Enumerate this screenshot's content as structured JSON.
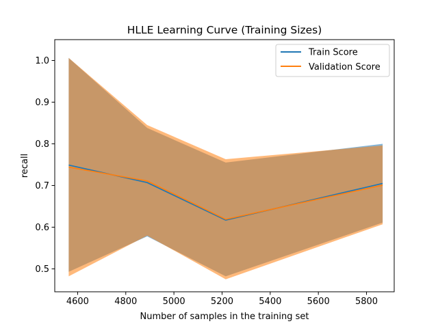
{
  "chart_data": {
    "type": "line",
    "title": "HLLE Learning Curve (Training Sizes)",
    "xlabel": "Number of samples in the training set",
    "ylabel": "recall",
    "xlim": [
      4505,
      5915
    ],
    "ylim": [
      0.445,
      1.05
    ],
    "x_ticks": [
      4600,
      4800,
      5000,
      5200,
      5400,
      5600,
      5800
    ],
    "y_ticks": [
      0.5,
      0.6,
      0.7,
      0.8,
      0.9,
      1.0
    ],
    "y_tick_labels": [
      "0.5",
      "0.6",
      "0.7",
      "0.8",
      "0.9",
      "1.0"
    ],
    "legend_position": "upper right",
    "grid": false,
    "x": [
      4563,
      4889,
      5215,
      5867
    ],
    "series": [
      {
        "name": "Train Score",
        "color": "#1f77b4",
        "values": [
          0.749,
          0.707,
          0.617,
          0.705
        ],
        "band_lower": [
          0.493,
          0.578,
          0.482,
          0.611
        ],
        "band_upper": [
          1.006,
          0.838,
          0.755,
          0.8
        ]
      },
      {
        "name": "Validation Score",
        "color": "#ff7f0e",
        "values": [
          0.744,
          0.711,
          0.619,
          0.701
        ],
        "band_lower": [
          0.482,
          0.58,
          0.475,
          0.607
        ],
        "band_upper": [
          1.006,
          0.845,
          0.763,
          0.796
        ]
      }
    ]
  }
}
